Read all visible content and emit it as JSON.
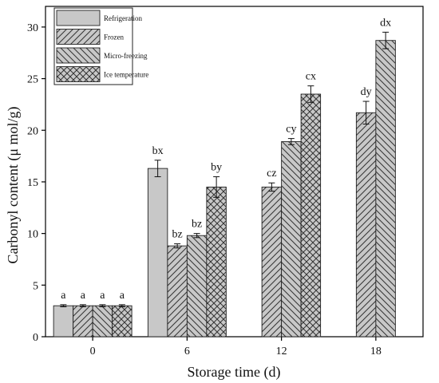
{
  "chart_data": {
    "type": "bar",
    "xlabel": "Storage time (d)",
    "ylabel": "Carbonyl content (μ mol/g)",
    "ylim": [
      0,
      32
    ],
    "yticks": [
      0,
      5,
      10,
      15,
      20,
      25,
      30
    ],
    "categories": [
      "0",
      "6",
      "12",
      "18"
    ],
    "legend_position": "top-left",
    "series": [
      {
        "name": "Refrigeration",
        "pattern": "solid",
        "values": [
          3.0,
          16.3,
          null,
          null
        ],
        "errors": [
          0.1,
          0.8,
          null,
          null
        ],
        "labels": [
          "a",
          "bx",
          "",
          ""
        ]
      },
      {
        "name": "Frozen",
        "pattern": "forward-diagonal",
        "values": [
          3.0,
          8.8,
          14.5,
          21.7
        ],
        "errors": [
          0.1,
          0.2,
          0.4,
          1.1
        ],
        "labels": [
          "a",
          "bz",
          "cz",
          "dy"
        ]
      },
      {
        "name": "Micro-freezing",
        "pattern": "back-diagonal",
        "values": [
          3.0,
          9.8,
          18.9,
          28.7
        ],
        "errors": [
          0.1,
          0.2,
          0.3,
          0.8
        ],
        "labels": [
          "a",
          "bz",
          "cy",
          "dx"
        ]
      },
      {
        "name": "Ice temperature",
        "pattern": "crosshatch",
        "values": [
          3.0,
          14.5,
          23.5,
          null
        ],
        "errors": [
          0.1,
          1.0,
          0.8,
          null
        ],
        "labels": [
          "a",
          "by",
          "cx",
          ""
        ]
      }
    ],
    "colors": {
      "bar_fill": "#c8c8c8",
      "hatch": "#333333",
      "axis": "#000000"
    }
  }
}
